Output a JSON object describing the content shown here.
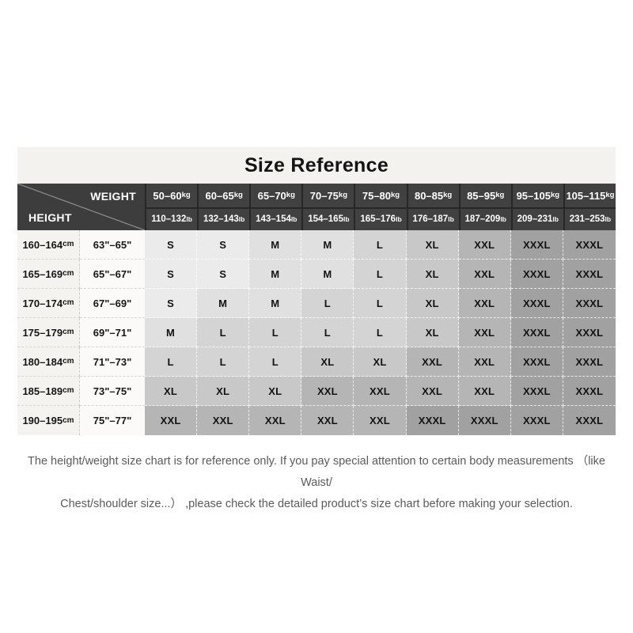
{
  "title": "Size Reference",
  "corner": {
    "weight_label": "WEIGHT",
    "height_label": "HEIGHT"
  },
  "units": {
    "kg": "kg",
    "lb": "lb",
    "cm": "cm"
  },
  "size_shades": {
    "S": "#ebebeb",
    "M": "#e0e0e0",
    "L": "#d4d4d4",
    "XL": "#c8c8c8",
    "XXL": "#b5b5b5",
    "XXXL": "#a1a1a1"
  },
  "colors": {
    "header_bg": "#414141",
    "header_corner_bg": "#3d3d3d",
    "header_separator": "#272727",
    "title_bar_bg": "#f3f2ef",
    "diagonal_line": "#8f8f8f",
    "disclaimer_text": "#5a5a5a"
  },
  "chart_data": {
    "type": "table",
    "title": "Size Reference",
    "weight_kg": [
      "50–60",
      "60–65",
      "65–70",
      "70–75",
      "75–80",
      "80–85",
      "85–95",
      "95–105",
      "105–115"
    ],
    "weight_lb": [
      "110–132",
      "132–143",
      "143–154",
      "154–165",
      "165–176",
      "176–187",
      "187–209",
      "209–231",
      "231–253"
    ],
    "height_cm": [
      "160–164",
      "165–169",
      "170–174",
      "175–179",
      "180–184",
      "185–189",
      "190–195"
    ],
    "height_inch": [
      "63\"–65\"",
      "65\"–67\"",
      "67\"–69\"",
      "69\"–71\"",
      "71\"–73\"",
      "73\"–75\"",
      "75\"–77\""
    ],
    "sizes": [
      [
        "S",
        "S",
        "M",
        "M",
        "L",
        "XL",
        "XXL",
        "XXXL",
        "XXXL"
      ],
      [
        "S",
        "S",
        "M",
        "M",
        "L",
        "XL",
        "XXL",
        "XXXL",
        "XXXL"
      ],
      [
        "S",
        "M",
        "M",
        "L",
        "L",
        "XL",
        "XXL",
        "XXXL",
        "XXXL"
      ],
      [
        "M",
        "L",
        "L",
        "L",
        "L",
        "XL",
        "XXL",
        "XXXL",
        "XXXL"
      ],
      [
        "L",
        "L",
        "L",
        "XL",
        "XL",
        "XXL",
        "XXL",
        "XXXL",
        "XXXL"
      ],
      [
        "XL",
        "XL",
        "XL",
        "XXL",
        "XXL",
        "XXL",
        "XXL",
        "XXXL",
        "XXXL"
      ],
      [
        "XXL",
        "XXL",
        "XXL",
        "XXL",
        "XXL",
        "XXXL",
        "XXXL",
        "XXXL",
        "XXXL"
      ]
    ]
  },
  "disclaimer": {
    "line1": "The height/weight size chart is for reference only. If you pay special attention to certain body measurements （like Waist/",
    "line2": "Chest/shoulder size...）  ,please check the detailed product’s size chart before making your selection."
  }
}
